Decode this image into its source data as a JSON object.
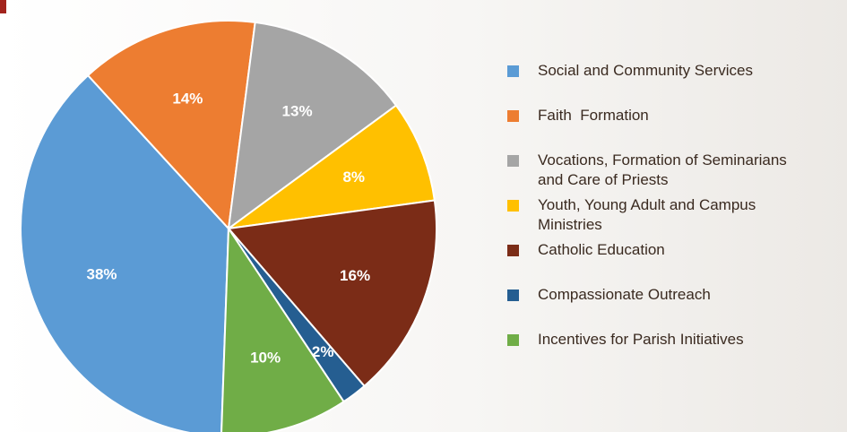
{
  "chart_data": {
    "type": "pie",
    "categories": [
      "Social and Community Services",
      "Faith  Formation",
      "Vocations, Formation of Seminarians and Care of Priests",
      "Youth, Young Adult and Campus Ministries",
      "Catholic Education",
      "Compassionate Outreach",
      "Incentives for Parish Initiatives"
    ],
    "values": [
      38,
      14,
      13,
      8,
      16,
      2,
      10
    ],
    "value_labels": [
      "38%",
      "14%",
      "13%",
      "8%",
      "16%",
      "2%",
      "10%"
    ],
    "colors": [
      "#5b9bd5",
      "#ed7d31",
      "#a5a5a5",
      "#ffc000",
      "#7b2c17",
      "#255e91",
      "#70ad47"
    ],
    "legend": "right"
  }
}
